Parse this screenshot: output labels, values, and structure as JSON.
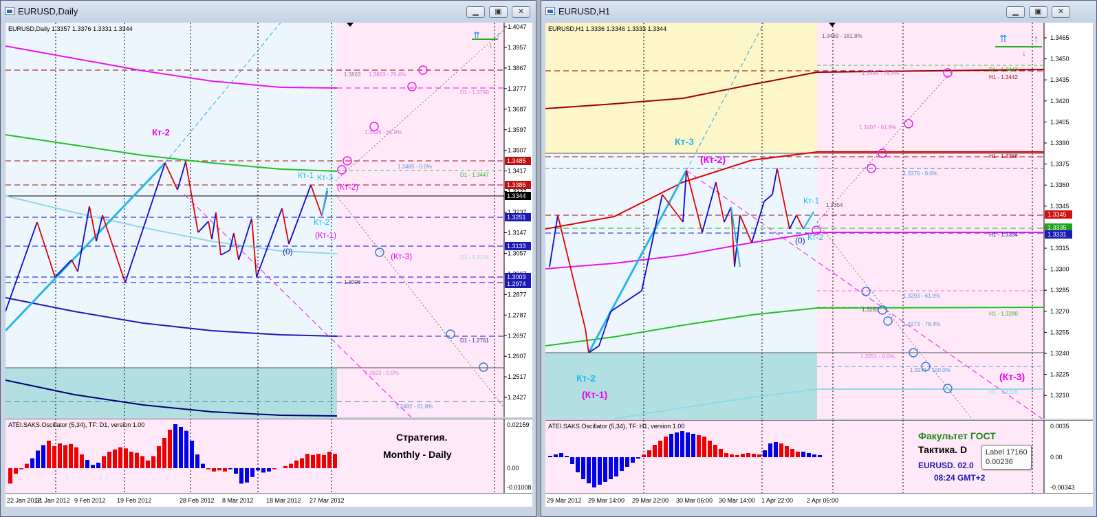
{
  "colors": {
    "blue_bar": "#0000ee",
    "red_bar": "#ee0000",
    "magenta": "#ee00ee",
    "cyan": "#29b5e8",
    "pink_zone": "#ffe8f8",
    "yellow_zone": "#fcf6c8",
    "teal_zone": "#b2dfe2"
  },
  "left": {
    "title": "EURUSD,Daily",
    "header": "EURUSD,Daily  1.3357 1.3376 1.3331 1.3344",
    "price_labels": [
      "1.4047",
      "1.3957",
      "1.3867",
      "1.3777",
      "1.3687",
      "1.3597",
      "1.3507",
      "1.3417",
      "1.3327",
      "1.3237",
      "1.3147",
      "1.3057",
      "1.2967",
      "1.2877",
      "1.2787",
      "1.2697",
      "1.2607",
      "1.2517",
      "1.2427"
    ],
    "time_labels": [
      "22 Jan 2012",
      "31 Jan 2012",
      "9 Feb 2012",
      "19 Feb 2012",
      "28 Feb 2012",
      "8 Mar 2012",
      "18 Mar 2012",
      "27 Mar 2012"
    ],
    "tags": [
      "1.3485",
      "1.3386",
      "1.3344",
      "1.3251",
      "1.3133",
      "1.3003",
      "1.2974"
    ],
    "levels": [
      "1.3863",
      "1.3863 - 76.4%",
      "D1 - 1.3790",
      "1.3626 - 61.8%",
      "1.3485 - 0.0%",
      "D1 - 1.3447",
      "D1 - 1.3104",
      "1.3006",
      "D1 - 1.2761",
      "1.2623 - 0.0%",
      "1.2482 - 61.8%"
    ],
    "marks": [
      "Кт-2",
      "Кт-1",
      "Кт-3",
      "(Кт-2)",
      "Кт-2",
      "(Кт-1)",
      "(Кт-3)",
      "(0)"
    ],
    "osc_title": "ATEI.SAKS.Oscillator (5,34), TF: D1, version 1.00",
    "osc_labels": [
      "0.02159",
      "0.00",
      "-0.01008"
    ],
    "strategy": [
      "Стратегия.",
      "Monthly - Daily"
    ]
  },
  "right": {
    "title": "EURUSD,H1",
    "header": "EURUSD,H1  1.3336 1.3346 1.3333 1.3344",
    "price_labels": [
      "1.3465",
      "1.3450",
      "1.3435",
      "1.3420",
      "1.3405",
      "1.3390",
      "1.3375",
      "1.3360",
      "1.3345",
      "1.3330",
      "1.3315",
      "1.3300",
      "1.3285",
      "1.3270",
      "1.3255",
      "1.3240",
      "1.3225",
      "1.3210"
    ],
    "time_labels": [
      "29 Mar 2012",
      "29 Mar 14:00",
      "29 Mar 22:00",
      "30 Mar 06:00",
      "30 Mar 14:00",
      "1 Apr 22:00",
      "2 Apr 06:00"
    ],
    "tags": [
      "1.3345",
      "1.3335",
      "1.3331"
    ],
    "levels": [
      "1.3469 - 161.8%",
      "1.3444 - 76.4%",
      "D1 - 1.3447",
      "H1 - 1.3442",
      "1.3407 - 61.8%",
      "H1 - 1.3388",
      "1.3376 - 0.0%",
      "1.3354",
      "H1 - 1.3334",
      "1.3293 - 61.8%",
      "1.3283",
      "H1 - 1.3280",
      "1.3273 - 76.4%",
      "1.3251 - 0.0%",
      "1.3241 - 100.0%",
      "H1 - 1.3226"
    ],
    "marks": [
      "Кт-3",
      "(Кт-2)",
      "Кт-1",
      "(0)",
      "Кт-2",
      "Кт-2",
      "(Кт-1)",
      "(Кт-3)"
    ],
    "osc_title": "ATEI.SAKS.Oscillator (5,34), TF: H1, version 1.00",
    "osc_labels": [
      "0.0035",
      "0.00",
      "-0.00343"
    ],
    "faculty": [
      "Факультет ГОСТ",
      "Тактика. D",
      "EURUSD. 02.0",
      "08:24  GMT+2"
    ],
    "tooltip": [
      "Label 17160",
      "0.00236"
    ]
  }
}
